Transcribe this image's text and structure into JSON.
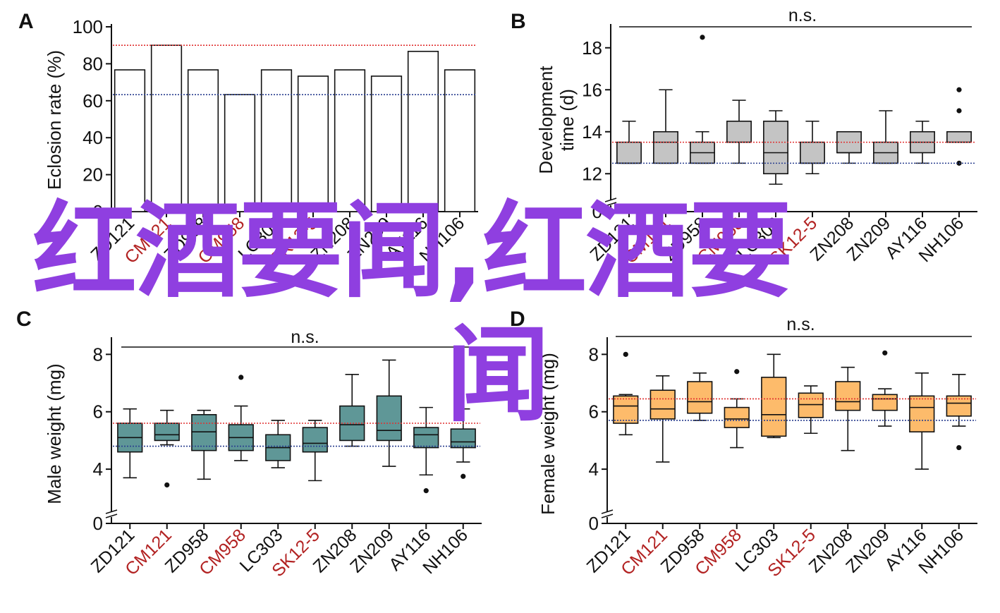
{
  "categories": [
    "ZD121",
    "CM121",
    "ZD958",
    "CM958",
    "LC303",
    "SK12-5",
    "ZN208",
    "ZN209",
    "AY116",
    "NH106"
  ],
  "category_colors": [
    "#111111",
    "#b22222",
    "#111111",
    "#b22222",
    "#111111",
    "#b22222",
    "#111111",
    "#111111",
    "#111111",
    "#111111"
  ],
  "overlay": {
    "line1": "红酒要闻,红酒要",
    "line2": "闻",
    "color": "#8f3fe0"
  },
  "chart_data": [
    {
      "panel": "A",
      "type": "bar",
      "ylabel": "Eclosion rate (%)",
      "ylim": [
        0,
        100
      ],
      "yticks": [
        0,
        20,
        40,
        60,
        80,
        100
      ],
      "values": [
        76.7,
        90,
        76.7,
        63.3,
        76.7,
        73.3,
        76.7,
        73.3,
        86.7,
        76.7
      ],
      "reference_lines": [
        {
          "value": 90,
          "color": "#e03030"
        },
        {
          "value": 63.3,
          "color": "#2a3f8f"
        }
      ],
      "bar_color": "#ffffff"
    },
    {
      "panel": "B",
      "type": "box",
      "ylabel_lines": [
        "Development",
        "time (d)"
      ],
      "annotation": "n.s.",
      "ylim": [
        11,
        19
      ],
      "yticks": [
        12,
        14,
        16,
        18
      ],
      "axis_break": true,
      "box_color": "#c4c4c4",
      "boxes": [
        {
          "q1": 12.5,
          "median": 12.5,
          "q3": 13.5,
          "low": 12.5,
          "high": 14.5,
          "outliers": []
        },
        {
          "q1": 12.5,
          "median": 13.5,
          "q3": 14,
          "low": 12.5,
          "high": 16,
          "outliers": []
        },
        {
          "q1": 12.5,
          "median": 13,
          "q3": 13.5,
          "low": 12.5,
          "high": 14,
          "outliers": [
            18.5
          ]
        },
        {
          "q1": 13.5,
          "median": 13.5,
          "q3": 14.5,
          "low": 12.5,
          "high": 15.5,
          "outliers": []
        },
        {
          "q1": 12,
          "median": 13,
          "q3": 14.5,
          "low": 11.5,
          "high": 15,
          "outliers": []
        },
        {
          "q1": 12.5,
          "median": 12.5,
          "q3": 13.5,
          "low": 12,
          "high": 14.5,
          "outliers": []
        },
        {
          "q1": 13,
          "median": 13,
          "q3": 14,
          "low": 12.5,
          "high": 14,
          "outliers": []
        },
        {
          "q1": 12.5,
          "median": 13,
          "q3": 13.5,
          "low": 12.5,
          "high": 15,
          "outliers": []
        },
        {
          "q1": 13,
          "median": 13.5,
          "q3": 14,
          "low": 12.5,
          "high": 14.5,
          "outliers": []
        },
        {
          "q1": 13.5,
          "median": 13.5,
          "q3": 14,
          "low": 13.5,
          "high": 14,
          "outliers": [
            16,
            15,
            12.5
          ]
        }
      ],
      "reference_lines": [
        {
          "value": 13.5,
          "color": "#e03030"
        },
        {
          "value": 12.5,
          "color": "#2a3f8f"
        }
      ]
    },
    {
      "panel": "C",
      "type": "box",
      "ylabel": "Male weight (mg)",
      "annotation": "n.s.",
      "ylim": [
        2.7,
        8.5
      ],
      "yticks": [
        4,
        6,
        8
      ],
      "axis_break": true,
      "box_color": "#5f9797",
      "boxes": [
        {
          "q1": 4.6,
          "median": 5.1,
          "q3": 5.6,
          "low": 3.7,
          "high": 6.1,
          "outliers": []
        },
        {
          "q1": 5.0,
          "median": 5.2,
          "q3": 5.6,
          "low": 4.85,
          "high": 6.05,
          "outliers": [
            3.45
          ]
        },
        {
          "q1": 4.65,
          "median": 5.3,
          "q3": 5.9,
          "low": 3.65,
          "high": 6.05,
          "outliers": []
        },
        {
          "q1": 4.65,
          "median": 5.1,
          "q3": 5.55,
          "low": 4.3,
          "high": 6.2,
          "outliers": [
            7.2
          ]
        },
        {
          "q1": 4.3,
          "median": 4.75,
          "q3": 5.2,
          "low": 4.05,
          "high": 5.7,
          "outliers": []
        },
        {
          "q1": 4.6,
          "median": 4.9,
          "q3": 5.45,
          "low": 3.6,
          "high": 5.7,
          "outliers": []
        },
        {
          "q1": 5.0,
          "median": 5.55,
          "q3": 6.2,
          "low": 4.8,
          "high": 7.3,
          "outliers": []
        },
        {
          "q1": 5.0,
          "median": 5.35,
          "q3": 6.55,
          "low": 4.1,
          "high": 7.8,
          "outliers": []
        },
        {
          "q1": 4.75,
          "median": 5.2,
          "q3": 5.45,
          "low": 3.8,
          "high": 6.15,
          "outliers": [
            3.25
          ]
        },
        {
          "q1": 4.75,
          "median": 4.95,
          "q3": 5.4,
          "low": 4.25,
          "high": 6.1,
          "outliers": [
            3.75
          ]
        }
      ],
      "reference_lines": [
        {
          "value": 5.6,
          "color": "#e03030"
        },
        {
          "value": 4.8,
          "color": "#2a3f8f"
        }
      ]
    },
    {
      "panel": "D",
      "type": "box",
      "ylabel": "Female weight (mg)",
      "annotation": "n.s.",
      "ylim": [
        2.7,
        8.5
      ],
      "yticks": [
        4,
        6,
        8
      ],
      "axis_break": true,
      "box_color": "#fdbb6b",
      "boxes": [
        {
          "q1": 5.6,
          "median": 6.2,
          "q3": 6.55,
          "low": 5.2,
          "high": 6.6,
          "outliers": [
            8.0
          ]
        },
        {
          "q1": 5.75,
          "median": 6.1,
          "q3": 6.75,
          "low": 4.25,
          "high": 7.25,
          "outliers": []
        },
        {
          "q1": 5.95,
          "median": 6.35,
          "q3": 7.05,
          "low": 5.7,
          "high": 7.35,
          "outliers": []
        },
        {
          "q1": 5.45,
          "median": 5.75,
          "q3": 6.15,
          "low": 4.75,
          "high": 6.45,
          "outliers": [
            7.4
          ]
        },
        {
          "q1": 5.15,
          "median": 5.9,
          "q3": 7.2,
          "low": 5.1,
          "high": 8.0,
          "outliers": []
        },
        {
          "q1": 5.8,
          "median": 6.25,
          "q3": 6.65,
          "low": 5.25,
          "high": 6.9,
          "outliers": []
        },
        {
          "q1": 6.05,
          "median": 6.35,
          "q3": 7.05,
          "low": 4.65,
          "high": 7.55,
          "outliers": []
        },
        {
          "q1": 6.05,
          "median": 6.45,
          "q3": 6.6,
          "low": 5.5,
          "high": 6.8,
          "outliers": [
            8.05
          ]
        },
        {
          "q1": 5.3,
          "median": 6.15,
          "q3": 6.55,
          "low": 4.0,
          "high": 7.35,
          "outliers": []
        },
        {
          "q1": 5.85,
          "median": 6.3,
          "q3": 6.55,
          "low": 5.5,
          "high": 7.3,
          "outliers": [
            4.75
          ]
        }
      ],
      "reference_lines": [
        {
          "value": 6.45,
          "color": "#e03030"
        },
        {
          "value": 5.7,
          "color": "#2a3f8f"
        }
      ]
    }
  ]
}
